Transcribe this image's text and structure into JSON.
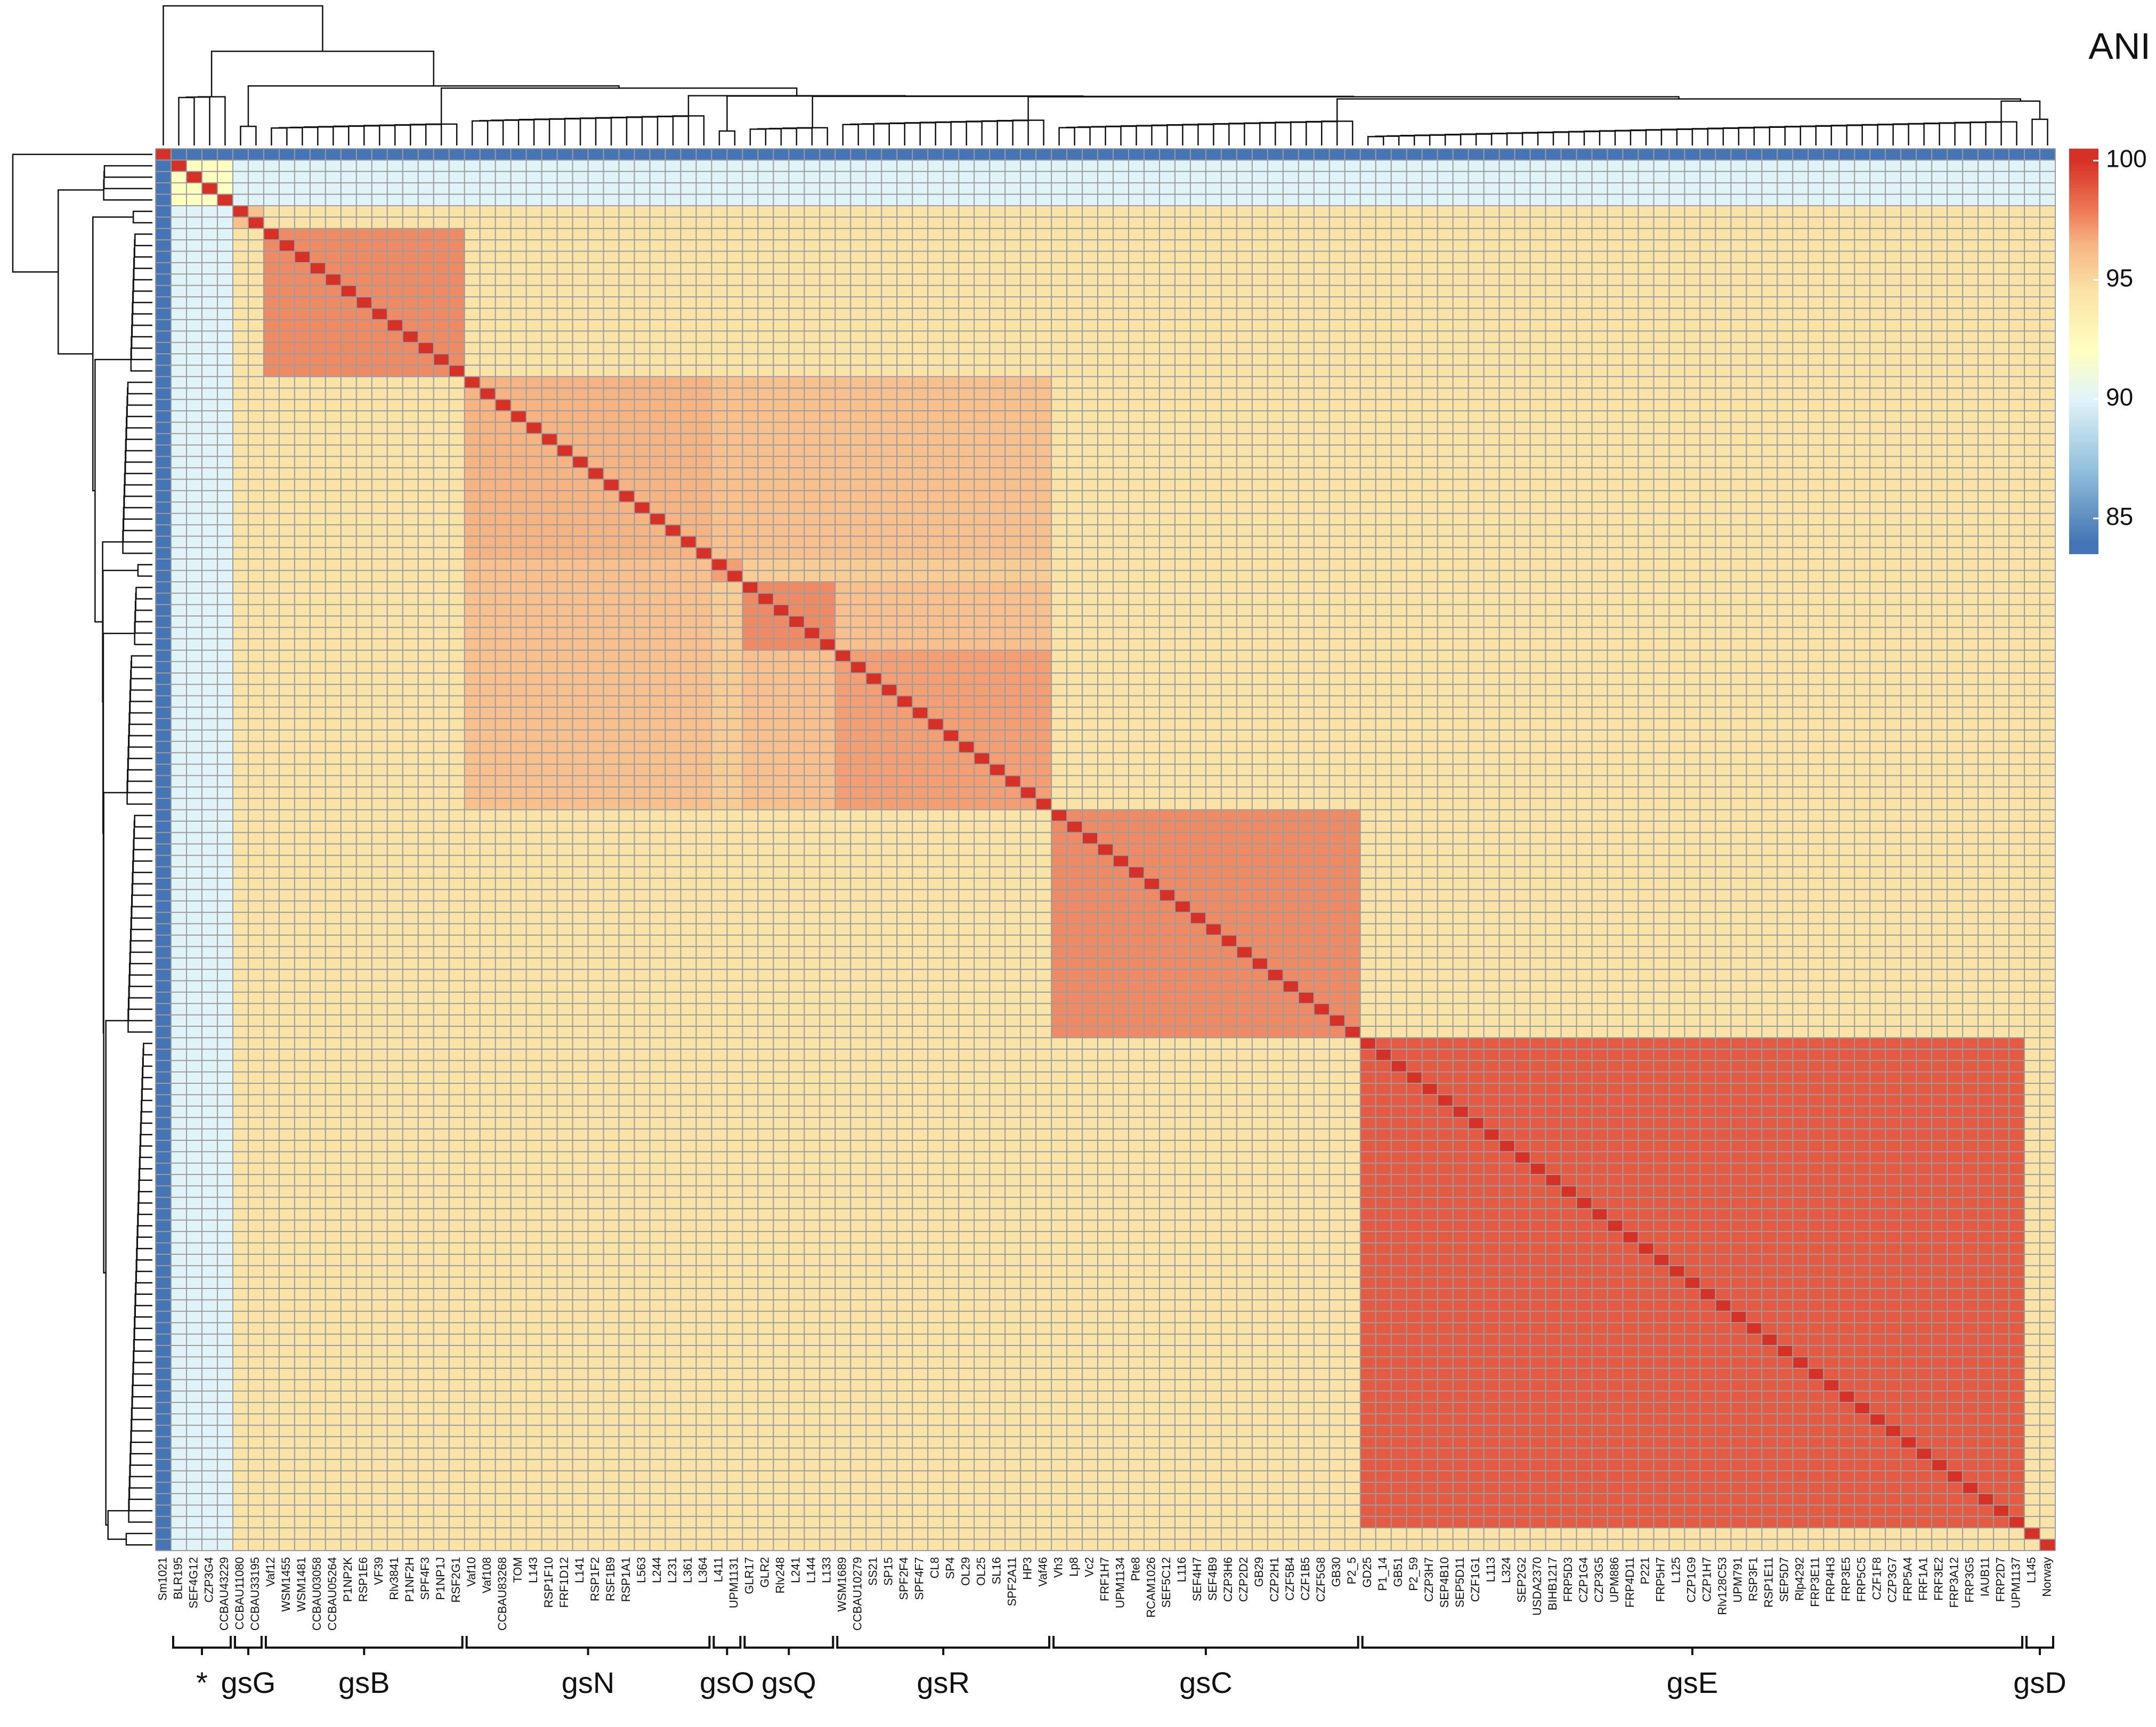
{
  "chart_data": {
    "type": "heatmap",
    "groups": [
      {
        "name": null,
        "members": [
          "Sm1021"
        ]
      },
      {
        "name": "*",
        "members": [
          "BLR195",
          "SEF4G12",
          "CZP3G4",
          "CCBAU43229"
        ]
      },
      {
        "name": "gsG",
        "members": [
          "CCBAU11080",
          "CCBAU33195"
        ]
      },
      {
        "name": "gsB",
        "members": [
          "Vaf12",
          "WSM1455",
          "WSM1481",
          "CCBAU03058",
          "CCBAU05264",
          "P1NP2K",
          "RSP1E6",
          "VF39",
          "Rlv3841",
          "P1NF2H",
          "SPF4F3",
          "P1NP1J",
          "RSF2G1"
        ]
      },
      {
        "name": "gsN",
        "members": [
          "Vaf10",
          "Vaf108",
          "CCBAU83268",
          "TOM",
          "L143",
          "RSP1F10",
          "FRF1D12",
          "L141",
          "RSP1F2",
          "RSF1B9",
          "RSP1A1",
          "L563",
          "L244",
          "L231",
          "L361",
          "L364"
        ]
      },
      {
        "name": "gsO",
        "members": [
          "L411",
          "UPM1131"
        ]
      },
      {
        "name": "gsQ",
        "members": [
          "GLR17",
          "GLR2",
          "Rlv248",
          "L241",
          "L144",
          "L133"
        ]
      },
      {
        "name": "gsR",
        "members": [
          "WSM1689",
          "CCBAU10279",
          "SS21",
          "SP15",
          "SPF2F4",
          "SPF4F7",
          "CL8",
          "SP4",
          "OL29",
          "OL25",
          "SL16",
          "SPF2A11",
          "HP3",
          "Vaf46"
        ]
      },
      {
        "name": "gsC",
        "members": [
          "Vh3",
          "Lp8",
          "Vc2",
          "FRF1H7",
          "UPM1134",
          "Pte8",
          "RCAM1026",
          "SEF5C12",
          "L116",
          "SEF4H7",
          "SEF4B9",
          "CZP3H6",
          "CZP2D2",
          "GB29",
          "CZP2H1",
          "CZF5B4",
          "CZF1B5",
          "CZF5G8",
          "GB30",
          "P2_5"
        ]
      },
      {
        "name": "gsE",
        "members": [
          "GD25",
          "P1_14",
          "GB51",
          "P2_59",
          "CZP3H7",
          "SEP4B10",
          "SEP5D11",
          "CZF1G1",
          "L113",
          "L324",
          "SEP2G2",
          "USDA2370",
          "BIHB1217",
          "FRP5D3",
          "CZP1G4",
          "CZP3G5",
          "UPM886",
          "FRP4D11",
          "P221",
          "FRP5H7",
          "L125",
          "CZP1G9",
          "CZP1H7",
          "Rlv128C53",
          "UPM791",
          "RSP3F1",
          "RSP1E11",
          "SEP5D7",
          "Rlp4292",
          "FRP3E11",
          "FRP4H3",
          "FRP3E5",
          "FRP5C5",
          "CZF1F8",
          "CZP3G7",
          "FRP5A4",
          "FRF1A1",
          "FRF3E2",
          "FRP3A12",
          "FRP3G5",
          "IAUB11",
          "FRP2D7",
          "UPM1137"
        ]
      },
      {
        "name": "gsD",
        "members": [
          "L145",
          "Norway"
        ]
      }
    ],
    "self_ani": 100,
    "ani": [
      [
        100,
        84,
        84,
        84,
        84,
        84,
        84,
        84,
        84,
        84,
        84
      ],
      [
        84,
        92,
        90,
        90,
        90,
        90,
        90,
        90,
        90,
        90,
        90
      ],
      [
        84,
        90,
        96,
        94.5,
        94.5,
        94.5,
        94.5,
        94.5,
        94.5,
        94.5,
        94.5
      ],
      [
        84,
        90,
        94.5,
        97.5,
        94.5,
        94.5,
        94.5,
        94.5,
        94.5,
        94.5,
        94.5
      ],
      [
        84,
        90,
        94.5,
        94.5,
        96.5,
        96,
        96,
        96,
        94.5,
        94.5,
        94.5
      ],
      [
        84,
        90,
        94.5,
        94.5,
        96,
        97,
        95.5,
        95.5,
        94.5,
        94.5,
        94.5
      ],
      [
        84,
        90,
        94.5,
        94.5,
        96,
        95.5,
        97.5,
        96,
        94.5,
        94.5,
        94.5
      ],
      [
        84,
        90,
        94.5,
        94.5,
        96,
        95.5,
        96,
        97,
        94.5,
        94.5,
        94.5
      ],
      [
        84,
        90,
        94.5,
        94.5,
        94.5,
        94.5,
        94.5,
        94.5,
        97.5,
        94.5,
        94.5
      ],
      [
        84,
        90,
        94.5,
        94.5,
        94.5,
        94.5,
        94.5,
        94.5,
        94.5,
        98.8,
        94.5
      ],
      [
        84,
        90,
        94.5,
        94.5,
        94.5,
        94.5,
        94.5,
        94.5,
        94.5,
        94.5,
        94.5
      ]
    ],
    "colorscale": [
      [
        84,
        "#4575b4"
      ],
      [
        87,
        "#91bfdb"
      ],
      [
        90,
        "#e0f3f8"
      ],
      [
        92,
        "#ffffbf"
      ],
      [
        94.5,
        "#fae3a6"
      ],
      [
        96.5,
        "#f6b483"
      ],
      [
        98,
        "#ec7654"
      ],
      [
        100,
        "#d73027"
      ]
    ],
    "colorbar": {
      "title": "ANI",
      "lim": [
        83.5,
        100.5
      ],
      "ticks": [
        85,
        90,
        95,
        100
      ]
    },
    "grid_color": "#9c9c9c"
  }
}
